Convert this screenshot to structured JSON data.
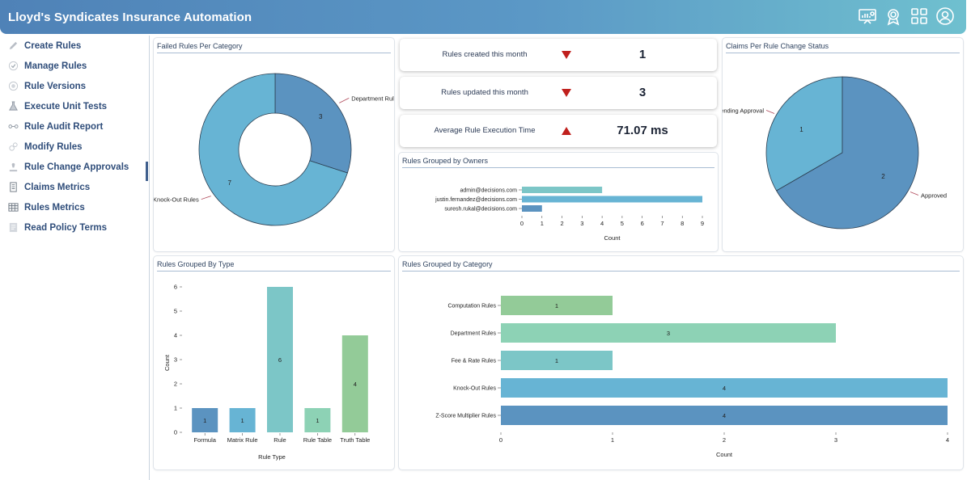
{
  "header": {
    "title": "Lloyd's Syndicates Insurance Automation"
  },
  "colors": {
    "blue": "#5b93c0",
    "lightblue": "#67b4d4",
    "teal": "#7cc6c7",
    "mint": "#8dd2b5",
    "green": "#93cb98",
    "arrow": "#c0201d"
  },
  "sidebar": {
    "items": [
      {
        "label": "Create Rules",
        "icon": "pencil-icon"
      },
      {
        "label": "Manage Rules",
        "icon": "check-circle-icon"
      },
      {
        "label": "Rule Versions",
        "icon": "version-icon"
      },
      {
        "label": "Execute Unit Tests",
        "icon": "flask-icon"
      },
      {
        "label": "Rule Audit Report",
        "icon": "audit-icon"
      },
      {
        "label": "Modify Rules",
        "icon": "modify-icon"
      },
      {
        "label": "Rule Change Approvals",
        "icon": "approval-icon"
      },
      {
        "label": "Claims Metrics",
        "icon": "document-icon"
      },
      {
        "label": "Rules Metrics",
        "icon": "table-icon"
      },
      {
        "label": "Read Policy Terms",
        "icon": "policy-icon"
      }
    ]
  },
  "kpis": [
    {
      "label": "Rules created this month",
      "value": "1",
      "trend": "down"
    },
    {
      "label": "Rules updated this month",
      "value": "3",
      "trend": "down"
    },
    {
      "label": "Average Rule Execution Time",
      "value": "71.07 ms",
      "trend": "up"
    }
  ],
  "chart_data": [
    {
      "id": "failed",
      "type": "pie",
      "title": "Failed Rules Per Category",
      "labels": [
        "Department Rules",
        "Knock-Out Rules"
      ],
      "values": [
        3,
        7
      ],
      "donut": true
    },
    {
      "id": "claims",
      "type": "pie",
      "title": "Claims Per Rule Change Status",
      "labels": [
        "Pending Approval",
        "Approved"
      ],
      "values": [
        1,
        2
      ]
    },
    {
      "id": "owners",
      "type": "bar",
      "orientation": "horizontal",
      "title": "Rules Grouped by Owners",
      "categories": [
        "admin@decisions.com",
        "justin.fernandez@decisions.com",
        "suresh.rukal@decisions.com"
      ],
      "values": [
        4,
        9,
        1
      ],
      "xlabel": "Count",
      "xlim": [
        0,
        9
      ],
      "xticks": [
        0,
        1,
        2,
        3,
        4,
        5,
        6,
        7,
        8,
        9
      ]
    },
    {
      "id": "type",
      "type": "bar",
      "title": "Rules Grouped By Type",
      "categories": [
        "Formula",
        "Matrix Rule",
        "Rule",
        "Rule Table",
        "Truth Table"
      ],
      "values": [
        1,
        1,
        6,
        1,
        4
      ],
      "xlabel": "Rule Type",
      "ylabel": "Count",
      "ylim": [
        0,
        6
      ],
      "yticks": [
        0,
        1,
        2,
        3,
        4,
        5,
        6
      ]
    },
    {
      "id": "category",
      "type": "bar",
      "orientation": "horizontal",
      "title": "Rules Grouped by Category",
      "categories": [
        "Computation Rules",
        "Department Rules",
        "Fee & Rate Rules",
        "Knock-Out Rules",
        "Z-Score Multiplier Rules"
      ],
      "values": [
        1,
        3,
        1,
        4,
        4
      ],
      "xlabel": "Count",
      "xlim": [
        0,
        4
      ],
      "xticks": [
        0,
        1,
        2,
        3,
        4
      ]
    }
  ]
}
